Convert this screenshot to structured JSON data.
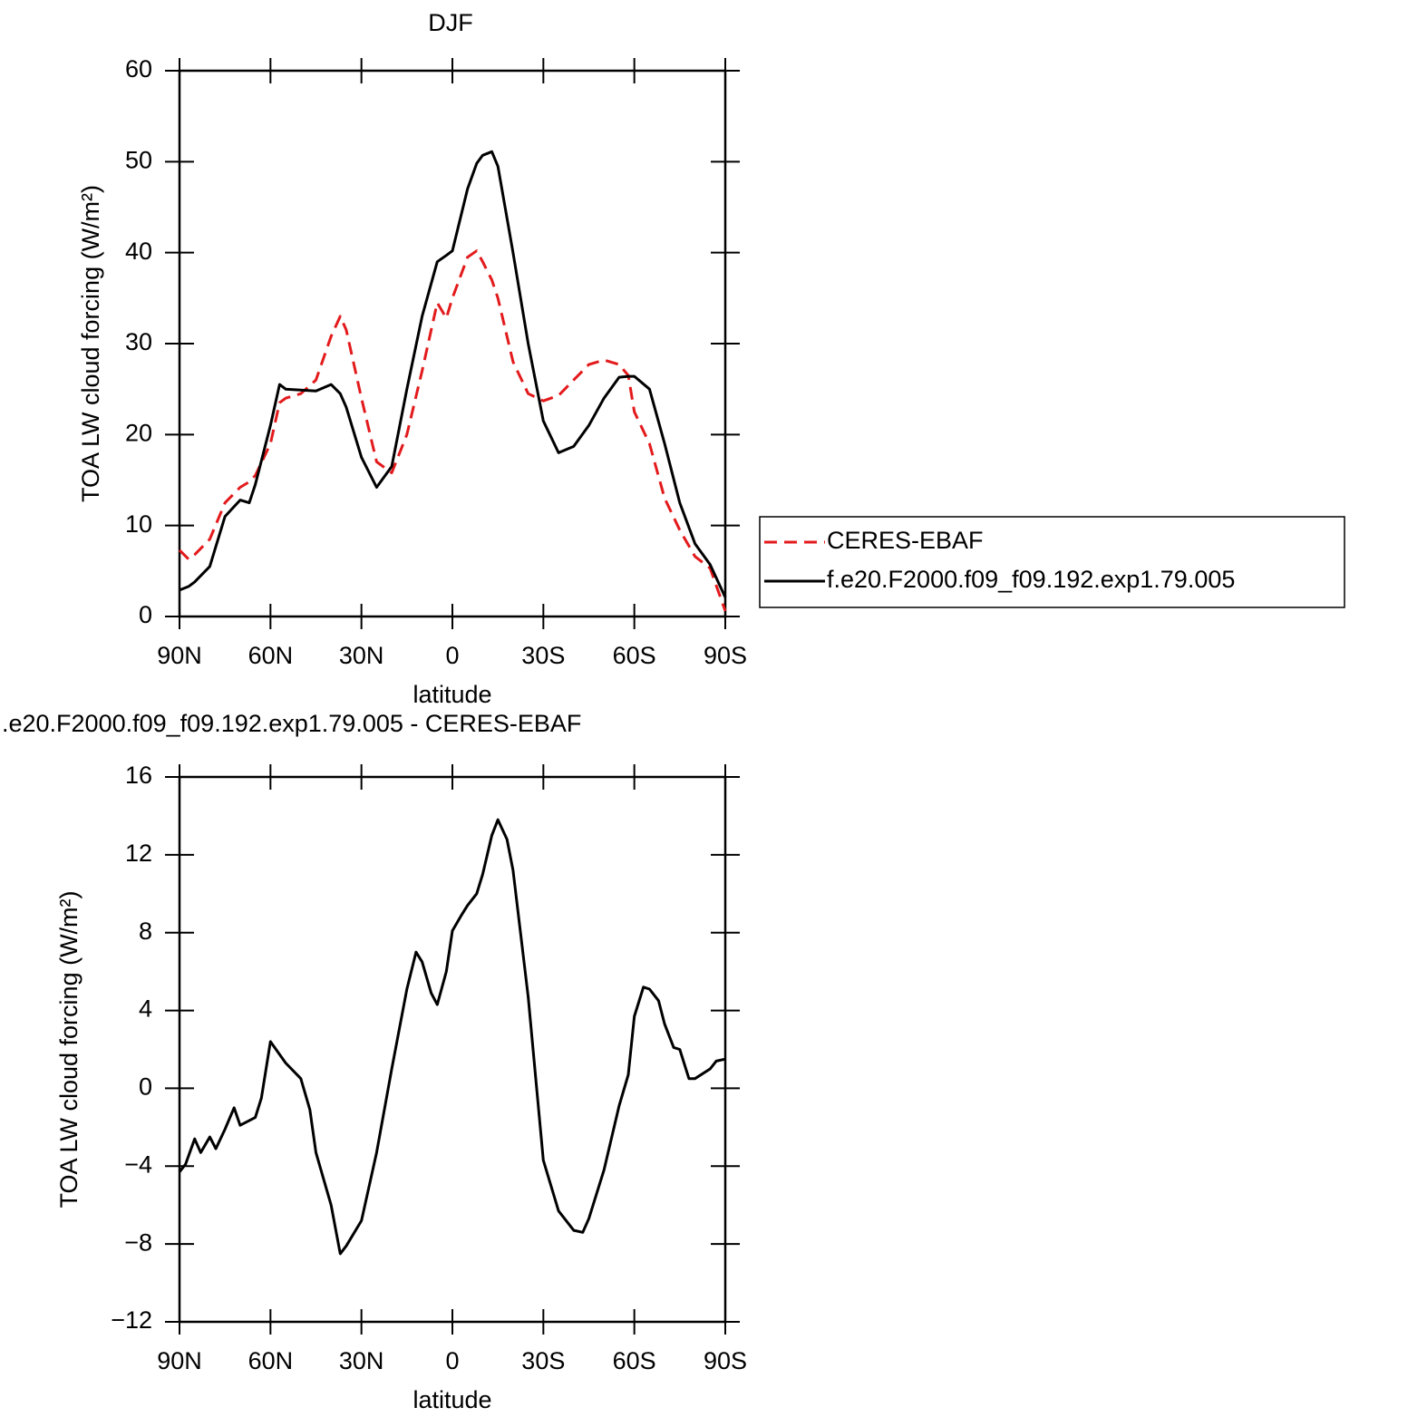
{
  "chart_data": [
    {
      "type": "line",
      "title": "DJF",
      "xlabel": "latitude",
      "ylabel": "TOA LW cloud forcing (W/m²)",
      "x": [
        90,
        87,
        85,
        80,
        75,
        70,
        67,
        65,
        60,
        57,
        55,
        50,
        45,
        40,
        37,
        35,
        30,
        25,
        20,
        15,
        10,
        5,
        2,
        0,
        -5,
        -8,
        -10,
        -13,
        -15,
        -20,
        -25,
        -30,
        -35,
        -40,
        -45,
        -50,
        -55,
        -58,
        -60,
        -65,
        -70,
        -75,
        -80,
        -85,
        -90
      ],
      "series": [
        {
          "name": "CERES-EBAF",
          "color": "#e31a1c",
          "linestyle": "dashed",
          "values": [
            7.3,
            6.3,
            6.8,
            8.5,
            12.5,
            14.2,
            14.8,
            15.5,
            19,
            23.5,
            24,
            24.5,
            26,
            30.8,
            33,
            31.5,
            24,
            17,
            15.8,
            20,
            27,
            34.5,
            32.8,
            35,
            39.5,
            40.2,
            39,
            37,
            35,
            28,
            24.5,
            23.7,
            24.3,
            26,
            27.7,
            28.2,
            27.7,
            26.5,
            22.5,
            19,
            13,
            9.5,
            6.6,
            5.3,
            0.6
          ]
        },
        {
          "name": "f.e20.F2000.f09_f09.192.exp1.79.005",
          "color": "#000000",
          "linestyle": "solid",
          "values": [
            2.9,
            3.3,
            3.8,
            5.5,
            11,
            12.8,
            12.5,
            14.5,
            21,
            25.5,
            25,
            24.9,
            24.8,
            25.5,
            24.5,
            23,
            17.5,
            14.2,
            16.5,
            25,
            33,
            39,
            39.7,
            40.2,
            47,
            49.8,
            50.7,
            51.1,
            49.5,
            40,
            30,
            21.5,
            18,
            18.7,
            21,
            24,
            26.3,
            26.4,
            26.4,
            25,
            19,
            12.5,
            8,
            5.7,
            2.1
          ]
        }
      ],
      "xlim": [
        90,
        -90
      ],
      "xticks": [
        {
          "value": 90,
          "label": "90N"
        },
        {
          "value": 60,
          "label": "60N"
        },
        {
          "value": 30,
          "label": "30N"
        },
        0,
        {
          "value": -30,
          "label": "30S"
        },
        {
          "value": -60,
          "label": "60S"
        },
        {
          "value": -90,
          "label": "90S"
        }
      ],
      "ylim": [
        0,
        60
      ],
      "yticks": [
        0,
        10,
        20,
        30,
        40,
        50,
        60
      ],
      "legend": "right"
    },
    {
      "type": "line",
      "title": ".e20.F2000.f09_f09.192.exp1.79.005 - CERES-EBAF",
      "xlabel": "latitude",
      "ylabel": "TOA LW cloud forcing (W/m²)",
      "x": [
        90,
        88,
        85,
        83,
        80,
        78,
        75,
        72,
        70,
        65,
        63,
        60,
        55,
        50,
        47,
        45,
        40,
        37,
        35,
        30,
        25,
        20,
        15,
        12,
        10,
        7,
        5,
        2,
        0,
        -3,
        -5,
        -8,
        -10,
        -13,
        -15,
        -18,
        -20,
        -25,
        -30,
        -35,
        -40,
        -43,
        -45,
        -50,
        -55,
        -58,
        -60,
        -63,
        -65,
        -68,
        -70,
        -73,
        -75,
        -78,
        -80,
        -85,
        -87,
        -90
      ],
      "series": [
        {
          "color": "#000000",
          "linestyle": "solid",
          "values": [
            -4.3,
            -3.9,
            -2.6,
            -3.3,
            -2.5,
            -3.1,
            -2.1,
            -1.0,
            -1.9,
            -1.5,
            -0.5,
            2.4,
            1.3,
            0.5,
            -1.1,
            -3.3,
            -6,
            -8.5,
            -8.1,
            -6.8,
            -3.3,
            1,
            5.1,
            7,
            6.5,
            4.9,
            4.3,
            6,
            8.1,
            8.9,
            9.4,
            10,
            11,
            13,
            13.8,
            12.8,
            11.2,
            4.7,
            -3.7,
            -6.3,
            -7.3,
            -7.4,
            -6.7,
            -4.2,
            -0.9,
            0.7,
            3.7,
            5.2,
            5.1,
            4.5,
            3.3,
            2.1,
            2.0,
            0.5,
            0.5,
            1.0,
            1.4,
            1.5
          ]
        }
      ],
      "xlim": [
        90,
        -90
      ],
      "xticks": [
        {
          "value": 90,
          "label": "90N"
        },
        {
          "value": 60,
          "label": "60N"
        },
        {
          "value": 30,
          "label": "30N"
        },
        0,
        {
          "value": -30,
          "label": "30S"
        },
        {
          "value": -60,
          "label": "60S"
        },
        {
          "value": -90,
          "label": "90S"
        }
      ],
      "ylim": [
        -12,
        16
      ],
      "yticks": [
        {
          "value": -12,
          "label": "−12"
        },
        {
          "value": -8,
          "label": "−8"
        },
        {
          "value": -4,
          "label": "−4"
        },
        0,
        4,
        8,
        12,
        16
      ]
    }
  ]
}
